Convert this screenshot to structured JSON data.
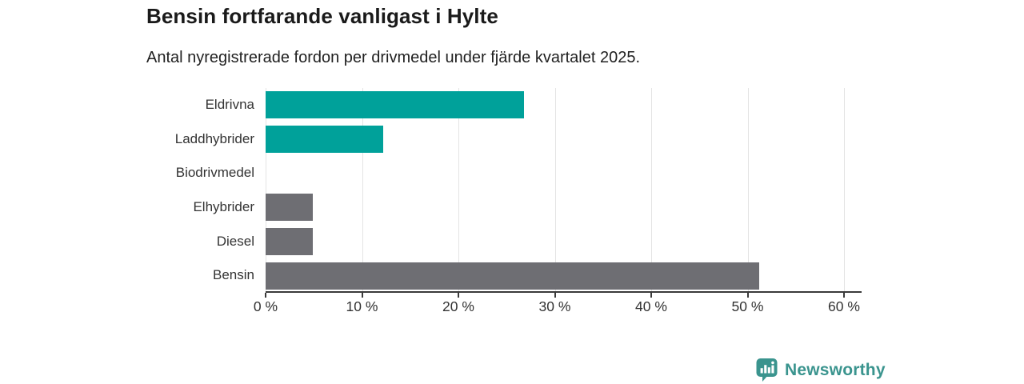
{
  "header": {
    "title": "Bensin fortfarande vanligast i Hylte",
    "subtitle": "Antal nyregistrerade fordon per drivmedel under fjärde kvartalet 2025."
  },
  "chart_data": {
    "type": "bar",
    "orientation": "horizontal",
    "title": "Bensin fortfarande vanligast i Hylte",
    "subtitle": "Antal nyregistrerade fordon per drivmedel under fjärde kvartalet 2025.",
    "categories": [
      "Eldrivna",
      "Laddhybrider",
      "Biodrivmedel",
      "Elhybrider",
      "Diesel",
      "Bensin"
    ],
    "values": [
      26.8,
      12.2,
      0,
      4.9,
      4.9,
      51.2
    ],
    "unit": "%",
    "bar_colors": [
      "#00a19a",
      "#00a19a",
      "#00a19a",
      "#6e6e73",
      "#6e6e73",
      "#6e6e73"
    ],
    "accent_color": "#00a19a",
    "neutral_color": "#6e6e73",
    "xlim": [
      0,
      60
    ],
    "x_ticks": [
      "0 %",
      "10 %",
      "20 %",
      "30 %",
      "40 %",
      "50 %",
      "60 %"
    ],
    "x_tick_values": [
      0,
      10,
      20,
      30,
      40,
      50,
      60
    ],
    "grid": true,
    "gridline_color": "#e3e3e3",
    "legend": "none"
  },
  "footer": {
    "brand": "Newsworthy",
    "brand_color": "#3a948e",
    "logo_icon": "bar-chart-speech-bubble"
  }
}
